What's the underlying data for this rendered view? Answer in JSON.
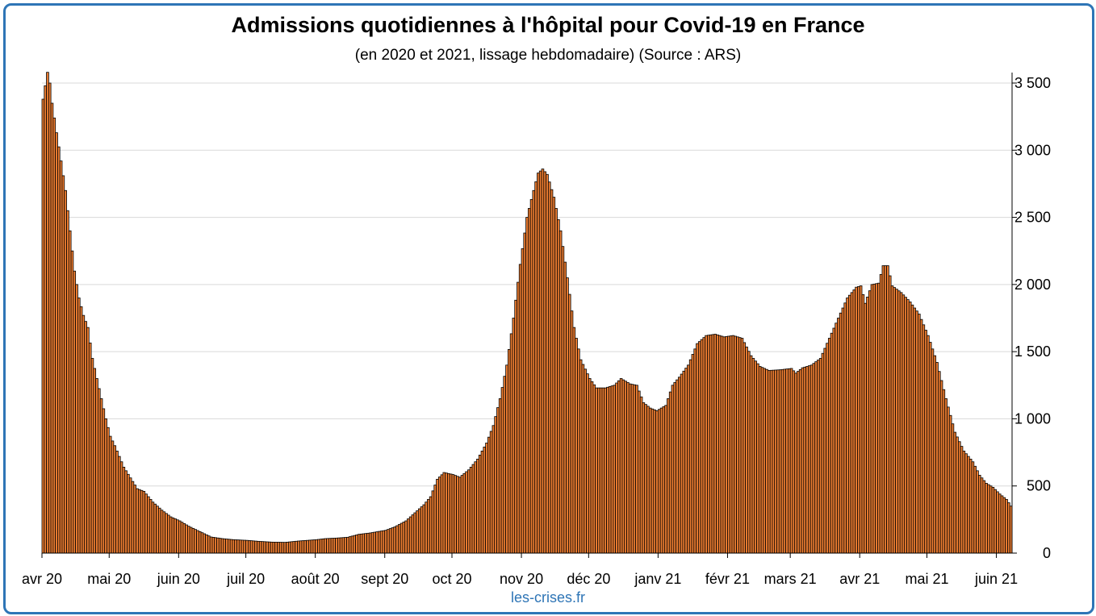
{
  "title": "Admissions quotidiennes à l'hôpital pour Covid-19 en France",
  "subtitle": "(en 2020 et 2021, lissage hebdomadaire) (Source : ARS)",
  "source_label": "les-crises.fr",
  "colors": {
    "bar_fill": "#ed7d31",
    "bar_stroke": "#000000",
    "frame": "#2e75b6",
    "grid": "#d9d9d9",
    "source_text": "#2e75b6"
  },
  "chart_data": {
    "type": "bar",
    "title": "Admissions quotidiennes à l'hôpital pour Covid-19 en France",
    "subtitle": "(en 2020 et 2021, lissage hebdomadaire) (Source : ARS)",
    "xlabel": "",
    "ylabel": "",
    "ylim": [
      0,
      3500
    ],
    "y_axis_position": "right",
    "y_ticks": [
      0,
      500,
      1000,
      1500,
      2000,
      2500,
      3000,
      3500
    ],
    "y_tick_labels": [
      "0",
      "500",
      "1 000",
      "1 500",
      "2 000",
      "2 500",
      "3 000",
      "3 500"
    ],
    "grid": true,
    "legend": "none",
    "x_start": "2020-04-01",
    "x_end": "2021-06-07",
    "month_labels": [
      "avr 20",
      "mai 20",
      "juin 20",
      "juil 20",
      "août 20",
      "sept 20",
      "oct 20",
      "nov 20",
      "déc 20",
      "janv 21",
      "févr 21",
      "mars 21",
      "avr 21",
      "mai 21",
      "juin 21"
    ],
    "month_starts": [
      "2020-04-01",
      "2020-05-01",
      "2020-06-01",
      "2020-07-01",
      "2020-08-01",
      "2020-09-01",
      "2020-10-01",
      "2020-11-01",
      "2020-12-01",
      "2021-01-01",
      "2021-02-01",
      "2021-03-01",
      "2021-04-01",
      "2021-05-01",
      "2021-06-01"
    ],
    "keypoints": [
      [
        "2020-04-01",
        3380
      ],
      [
        "2020-04-02",
        3480
      ],
      [
        "2020-04-03",
        3580
      ],
      [
        "2020-04-04",
        3500
      ],
      [
        "2020-04-05",
        3350
      ],
      [
        "2020-04-07",
        3130
      ],
      [
        "2020-04-09",
        2920
      ],
      [
        "2020-04-11",
        2700
      ],
      [
        "2020-04-13",
        2400
      ],
      [
        "2020-04-15",
        2100
      ],
      [
        "2020-04-17",
        1900
      ],
      [
        "2020-04-19",
        1770
      ],
      [
        "2020-04-21",
        1680
      ],
      [
        "2020-04-23",
        1450
      ],
      [
        "2020-04-25",
        1300
      ],
      [
        "2020-04-27",
        1150
      ],
      [
        "2020-04-29",
        1000
      ],
      [
        "2020-05-01",
        870
      ],
      [
        "2020-05-03",
        800
      ],
      [
        "2020-05-05",
        720
      ],
      [
        "2020-05-07",
        640
      ],
      [
        "2020-05-10",
        560
      ],
      [
        "2020-05-13",
        480
      ],
      [
        "2020-05-16",
        460
      ],
      [
        "2020-05-20",
        380
      ],
      [
        "2020-05-24",
        320
      ],
      [
        "2020-05-28",
        270
      ],
      [
        "2020-06-01",
        240
      ],
      [
        "2020-06-05",
        200
      ],
      [
        "2020-06-10",
        160
      ],
      [
        "2020-06-15",
        120
      ],
      [
        "2020-06-20",
        108
      ],
      [
        "2020-06-25",
        100
      ],
      [
        "2020-07-01",
        95
      ],
      [
        "2020-07-06",
        88
      ],
      [
        "2020-07-12",
        82
      ],
      [
        "2020-07-18",
        80
      ],
      [
        "2020-07-24",
        90
      ],
      [
        "2020-08-01",
        100
      ],
      [
        "2020-08-05",
        108
      ],
      [
        "2020-08-10",
        112
      ],
      [
        "2020-08-15",
        118
      ],
      [
        "2020-08-20",
        140
      ],
      [
        "2020-08-25",
        150
      ],
      [
        "2020-09-01",
        170
      ],
      [
        "2020-09-05",
        195
      ],
      [
        "2020-09-10",
        240
      ],
      [
        "2020-09-14",
        300
      ],
      [
        "2020-09-18",
        360
      ],
      [
        "2020-09-21",
        420
      ],
      [
        "2020-09-24",
        550
      ],
      [
        "2020-09-27",
        600
      ],
      [
        "2020-10-01",
        585
      ],
      [
        "2020-10-04",
        565
      ],
      [
        "2020-10-08",
        620
      ],
      [
        "2020-10-12",
        700
      ],
      [
        "2020-10-16",
        820
      ],
      [
        "2020-10-19",
        950
      ],
      [
        "2020-10-22",
        1150
      ],
      [
        "2020-10-25",
        1400
      ],
      [
        "2020-10-28",
        1750
      ],
      [
        "2020-10-31",
        2150
      ],
      [
        "2020-11-03",
        2500
      ],
      [
        "2020-11-06",
        2700
      ],
      [
        "2020-11-08",
        2830
      ],
      [
        "2020-11-10",
        2860
      ],
      [
        "2020-11-12",
        2820
      ],
      [
        "2020-11-15",
        2650
      ],
      [
        "2020-11-18",
        2400
      ],
      [
        "2020-11-21",
        2050
      ],
      [
        "2020-11-24",
        1680
      ],
      [
        "2020-11-27",
        1440
      ],
      [
        "2020-12-01",
        1300
      ],
      [
        "2020-12-04",
        1230
      ],
      [
        "2020-12-08",
        1230
      ],
      [
        "2020-12-12",
        1250
      ],
      [
        "2020-12-15",
        1300
      ],
      [
        "2020-12-19",
        1260
      ],
      [
        "2020-12-22",
        1250
      ],
      [
        "2020-12-25",
        1120
      ],
      [
        "2020-12-28",
        1080
      ],
      [
        "2020-12-31",
        1060
      ],
      [
        "2021-01-04",
        1100
      ],
      [
        "2021-01-07",
        1250
      ],
      [
        "2021-01-10",
        1310
      ],
      [
        "2021-01-14",
        1400
      ],
      [
        "2021-01-18",
        1560
      ],
      [
        "2021-01-22",
        1620
      ],
      [
        "2021-01-26",
        1630
      ],
      [
        "2021-01-30",
        1610
      ],
      [
        "2021-02-03",
        1620
      ],
      [
        "2021-02-07",
        1600
      ],
      [
        "2021-02-11",
        1470
      ],
      [
        "2021-02-15",
        1390
      ],
      [
        "2021-02-19",
        1360
      ],
      [
        "2021-02-24",
        1365
      ],
      [
        "2021-03-01",
        1375
      ],
      [
        "2021-03-03",
        1340
      ],
      [
        "2021-03-06",
        1380
      ],
      [
        "2021-03-10",
        1400
      ],
      [
        "2021-03-14",
        1450
      ],
      [
        "2021-03-18",
        1600
      ],
      [
        "2021-03-22",
        1750
      ],
      [
        "2021-03-26",
        1900
      ],
      [
        "2021-03-30",
        1980
      ],
      [
        "2021-04-01",
        1990
      ],
      [
        "2021-04-03",
        1860
      ],
      [
        "2021-04-06",
        2000
      ],
      [
        "2021-04-09",
        2010
      ],
      [
        "2021-04-11",
        2140
      ],
      [
        "2021-04-13",
        2140
      ],
      [
        "2021-04-15",
        1990
      ],
      [
        "2021-04-19",
        1940
      ],
      [
        "2021-04-23",
        1870
      ],
      [
        "2021-04-27",
        1780
      ],
      [
        "2021-05-01",
        1620
      ],
      [
        "2021-05-05",
        1420
      ],
      [
        "2021-05-09",
        1150
      ],
      [
        "2021-05-13",
        900
      ],
      [
        "2021-05-17",
        760
      ],
      [
        "2021-05-21",
        680
      ],
      [
        "2021-05-24",
        580
      ],
      [
        "2021-05-27",
        520
      ],
      [
        "2021-05-30",
        490
      ],
      [
        "2021-06-02",
        440
      ],
      [
        "2021-06-05",
        400
      ],
      [
        "2021-06-07",
        350
      ]
    ]
  }
}
